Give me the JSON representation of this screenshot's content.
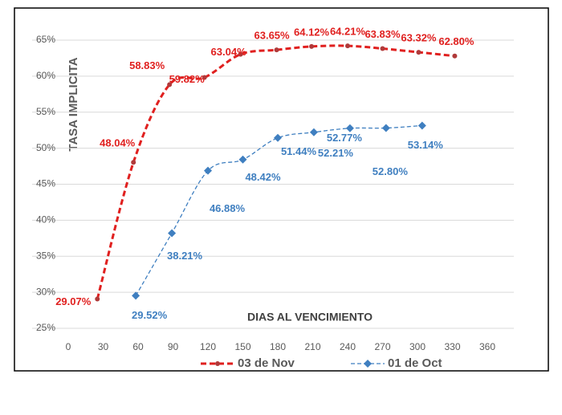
{
  "chart_data": {
    "type": "line",
    "y_axis_label": "TASA IMPLICITA",
    "x_axis_label": "DIAS AL VENCIMIENTO",
    "xlim": [
      0,
      360
    ],
    "xticks": [
      0,
      30,
      60,
      90,
      120,
      150,
      180,
      210,
      240,
      270,
      300,
      330,
      360
    ],
    "ylim": [
      25,
      65
    ],
    "yticks": [
      {
        "value": 25,
        "label": "25%"
      },
      {
        "value": 30,
        "label": "30%"
      },
      {
        "value": 35,
        "label": "35%"
      },
      {
        "value": 40,
        "label": "40%"
      },
      {
        "value": 45,
        "label": "45%"
      },
      {
        "value": 50,
        "label": "50%"
      },
      {
        "value": 55,
        "label": "55%"
      },
      {
        "value": 60,
        "label": "60%"
      },
      {
        "value": 65,
        "label": "65%"
      }
    ],
    "grid": true,
    "series": [
      {
        "name": "03 de Nov",
        "color": "#e0201f",
        "x": [
          25,
          56,
          87,
          117,
          148,
          179,
          209,
          240,
          270,
          301,
          332
        ],
        "values": [
          29.07,
          48.04,
          58.83,
          59.82,
          63.04,
          63.65,
          64.12,
          64.21,
          63.83,
          63.32,
          62.8
        ],
        "value_labels": [
          "29.07%",
          "48.04%",
          "58.83%",
          "59.82%",
          "63.04%",
          "63.65%",
          "64.12%",
          "64.21%",
          "63.83%",
          "63.32%",
          "62.80%"
        ]
      },
      {
        "name": "01 de Oct",
        "color": "#3f7fc0",
        "x": [
          58,
          89,
          120,
          150,
          180,
          211,
          242,
          273,
          304
        ],
        "values": [
          29.52,
          38.21,
          46.88,
          48.42,
          51.44,
          52.21,
          52.77,
          52.8,
          53.14
        ],
        "value_labels": [
          "29.52%",
          "38.21%",
          "46.88%",
          "48.42%",
          "51.44%",
          "52.21%",
          "52.77%",
          "52.80%",
          "53.14%"
        ]
      }
    ]
  }
}
